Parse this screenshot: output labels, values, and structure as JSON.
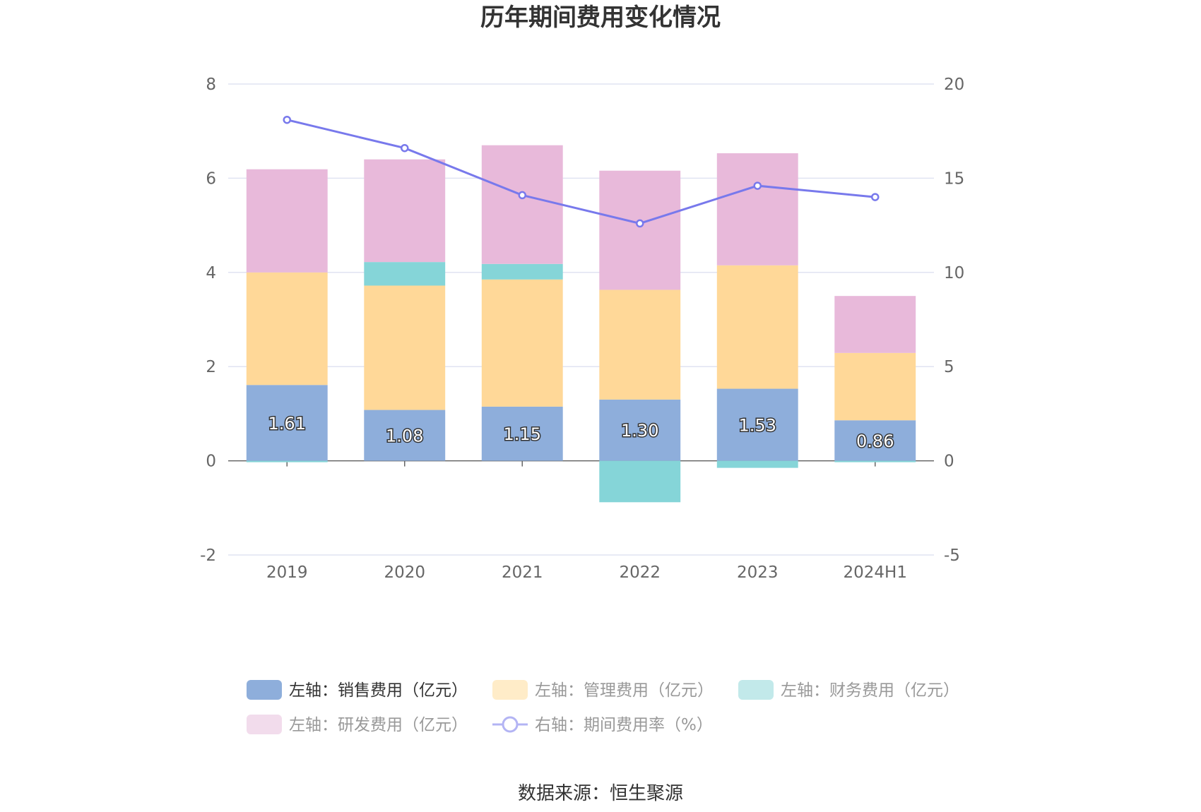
{
  "title": "历年期间费用变化情况",
  "source": "数据来源：恒生聚源",
  "chart_data": {
    "type": "bar",
    "stacked": true,
    "categories": [
      "2019",
      "2020",
      "2021",
      "2022",
      "2023",
      "2024H1"
    ],
    "left_axis": {
      "ylim": [
        -2,
        8
      ],
      "ticks": [
        "-2",
        "0",
        "2",
        "4",
        "6",
        "8"
      ]
    },
    "right_axis": {
      "ylim": [
        -5,
        20
      ],
      "ticks": [
        "-5",
        "0",
        "5",
        "10",
        "15",
        "20"
      ]
    },
    "series": [
      {
        "name": "左轴：销售费用（亿元）",
        "type": "bar",
        "axis": "left",
        "color": "#8eaedb",
        "values": [
          1.61,
          1.08,
          1.15,
          1.3,
          1.53,
          0.86
        ],
        "labels": [
          "1.61",
          "1.08",
          "1.15",
          "1.30",
          "1.53",
          "0.86"
        ]
      },
      {
        "name": "左轴：管理费用（亿元）",
        "type": "bar",
        "axis": "left",
        "color": "#ffd898",
        "values": [
          2.39,
          2.64,
          2.7,
          2.33,
          2.62,
          1.43
        ]
      },
      {
        "name": "左轴：财务费用（亿元）",
        "type": "bar",
        "axis": "left",
        "color": "#85d5d8",
        "values": [
          -0.03,
          0.5,
          0.33,
          -0.88,
          -0.15,
          -0.03
        ]
      },
      {
        "name": "左轴：研发费用（亿元）",
        "type": "bar",
        "axis": "left",
        "color": "#e8b9da",
        "values": [
          2.19,
          2.18,
          2.52,
          2.53,
          2.38,
          1.21
        ]
      },
      {
        "name": "右轴：期间费用率（%）",
        "type": "line",
        "axis": "right",
        "color": "#7879ec",
        "values": [
          18.1,
          16.6,
          14.1,
          12.6,
          14.6,
          14.0
        ]
      }
    ],
    "legend_position": "bottom",
    "grid": true
  }
}
